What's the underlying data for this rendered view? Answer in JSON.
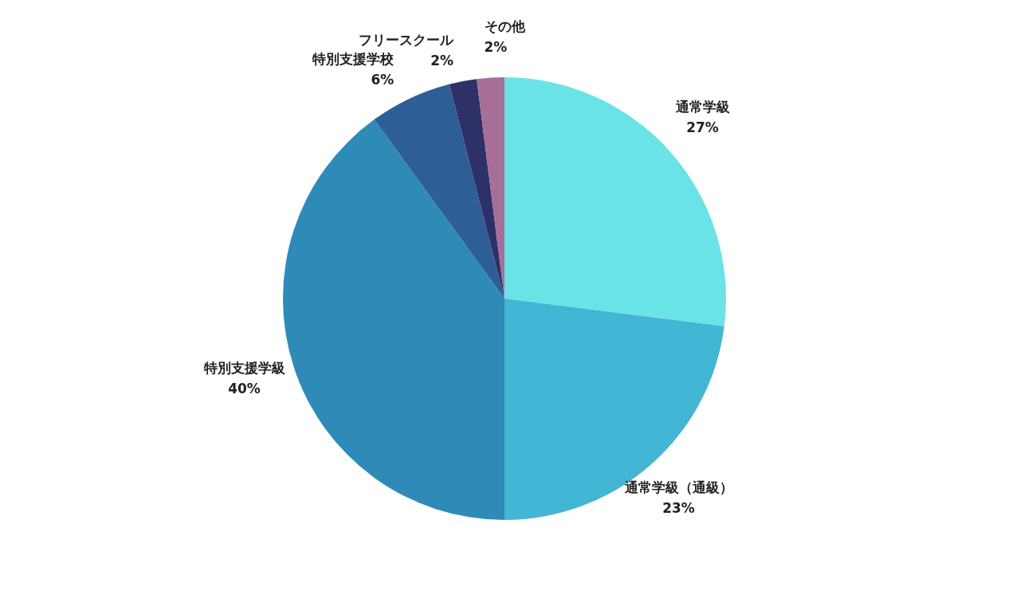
{
  "chart_data": {
    "type": "pie",
    "categories": [
      "通常学級",
      "通常学級（通級）",
      "特別支援学級",
      "特別支援学校",
      "フリースクール",
      "その他"
    ],
    "values": [
      27,
      23,
      40,
      6,
      2,
      2
    ],
    "value_labels": [
      "27%",
      "23%",
      "40%",
      "6%",
      "2%",
      "2%"
    ],
    "colors": [
      "#6ae3e6",
      "#42b6d4",
      "#2e8bb8",
      "#2e5e96",
      "#2e3068",
      "#a86e9a"
    ],
    "legend": false
  }
}
